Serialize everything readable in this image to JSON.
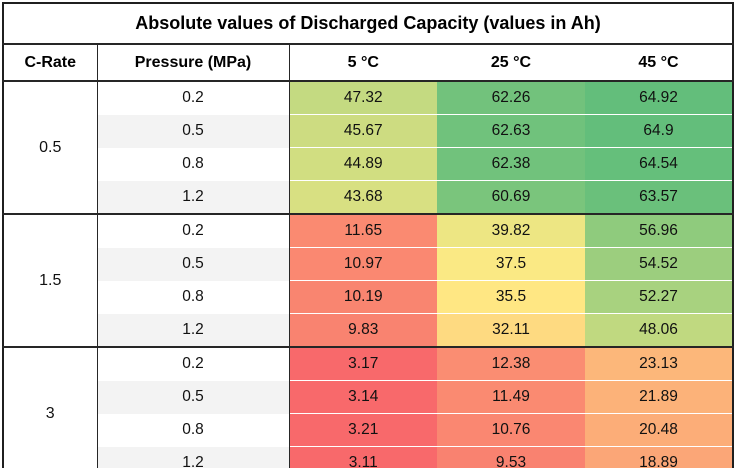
{
  "table": {
    "title": "Absolute values of Discharged Capacity (values in Ah)",
    "columns": [
      "C-Rate",
      "Pressure (MPa)",
      "5 °C",
      "25 °C",
      "45 °C"
    ],
    "groups": [
      {
        "c_rate": "0.5",
        "rows": [
          {
            "pressure": "0.2",
            "cells": [
              {
                "text": "47.32",
                "bg": "#C4DA81"
              },
              {
                "text": "62.26",
                "bg": "#72C27C"
              },
              {
                "text": "64.92",
                "bg": "#63BE7B"
              }
            ]
          },
          {
            "pressure": "0.5",
            "cells": [
              {
                "text": "45.67",
                "bg": "#CDDC81"
              },
              {
                "text": "62.63",
                "bg": "#70C27C"
              },
              {
                "text": "64.9",
                "bg": "#63BE7B"
              }
            ]
          },
          {
            "pressure": "0.8",
            "cells": [
              {
                "text": "44.89",
                "bg": "#D1DE81"
              },
              {
                "text": "62.38",
                "bg": "#71C27C"
              },
              {
                "text": "64.54",
                "bg": "#65BF7B"
              }
            ]
          },
          {
            "pressure": "1.2",
            "cells": [
              {
                "text": "43.68",
                "bg": "#D8E082"
              },
              {
                "text": "60.69",
                "bg": "#7AC57C"
              },
              {
                "text": "63.57",
                "bg": "#6AC07B"
              }
            ]
          }
        ]
      },
      {
        "c_rate": "1.5",
        "rows": [
          {
            "pressure": "0.2",
            "cells": [
              {
                "text": "11.65",
                "bg": "#FA8A71"
              },
              {
                "text": "39.82",
                "bg": "#EDE683"
              },
              {
                "text": "56.96",
                "bg": "#8FCB7D"
              }
            ]
          },
          {
            "pressure": "0.5",
            "cells": [
              {
                "text": "10.97",
                "bg": "#FA8871"
              },
              {
                "text": "37.5",
                "bg": "#FAE984"
              },
              {
                "text": "54.52",
                "bg": "#9CCE7E"
              }
            ]
          },
          {
            "pressure": "0.8",
            "cells": [
              {
                "text": "10.19",
                "bg": "#F98570"
              },
              {
                "text": "35.5",
                "bg": "#FFE783"
              },
              {
                "text": "52.27",
                "bg": "#A8D27F"
              }
            ]
          },
          {
            "pressure": "1.2",
            "cells": [
              {
                "text": "9.83",
                "bg": "#F98370"
              },
              {
                "text": "32.11",
                "bg": "#FEDA81"
              },
              {
                "text": "48.06",
                "bg": "#C0D980"
              }
            ]
          }
        ]
      },
      {
        "c_rate": "3",
        "rows": [
          {
            "pressure": "0.2",
            "cells": [
              {
                "text": "3.17",
                "bg": "#F8696B"
              },
              {
                "text": "12.38",
                "bg": "#FA8D72"
              },
              {
                "text": "23.13",
                "bg": "#FCB77A"
              }
            ]
          },
          {
            "pressure": "0.5",
            "cells": [
              {
                "text": "3.14",
                "bg": "#F8696B"
              },
              {
                "text": "11.49",
                "bg": "#FA8A71"
              },
              {
                "text": "21.89",
                "bg": "#FCB279"
              }
            ]
          },
          {
            "pressure": "0.8",
            "cells": [
              {
                "text": "3.21",
                "bg": "#F8696B"
              },
              {
                "text": "10.76",
                "bg": "#FA8771"
              },
              {
                "text": "20.48",
                "bg": "#FCAD78"
              }
            ]
          },
          {
            "pressure": "1.2",
            "cells": [
              {
                "text": "3.11",
                "bg": "#F8696B"
              },
              {
                "text": "9.53",
                "bg": "#F98270"
              },
              {
                "text": "18.89",
                "bg": "#FBA677"
              }
            ]
          }
        ]
      }
    ]
  },
  "colors": {
    "border": "#262626",
    "band_row": "#f3f3f3",
    "scale_min_color": "#F8696B",
    "scale_mid_color": "#FFEB84",
    "scale_max_color": "#63BE7B"
  },
  "chart_data": {
    "type": "heatmap",
    "title": "Absolute values of Discharged Capacity (values in Ah)",
    "unit": "Ah",
    "x_categories": [
      "5 °C",
      "25 °C",
      "45 °C"
    ],
    "row_dimensions": [
      "C-Rate",
      "Pressure (MPa)"
    ],
    "rows": [
      {
        "c_rate": 0.5,
        "pressure_mpa": 0.2,
        "values": [
          47.32,
          62.26,
          64.92
        ]
      },
      {
        "c_rate": 0.5,
        "pressure_mpa": 0.5,
        "values": [
          45.67,
          62.63,
          64.9
        ]
      },
      {
        "c_rate": 0.5,
        "pressure_mpa": 0.8,
        "values": [
          44.89,
          62.38,
          64.54
        ]
      },
      {
        "c_rate": 0.5,
        "pressure_mpa": 1.2,
        "values": [
          43.68,
          60.69,
          63.57
        ]
      },
      {
        "c_rate": 1.5,
        "pressure_mpa": 0.2,
        "values": [
          11.65,
          39.82,
          56.96
        ]
      },
      {
        "c_rate": 1.5,
        "pressure_mpa": 0.5,
        "values": [
          10.97,
          37.5,
          54.52
        ]
      },
      {
        "c_rate": 1.5,
        "pressure_mpa": 0.8,
        "values": [
          10.19,
          35.5,
          52.27
        ]
      },
      {
        "c_rate": 1.5,
        "pressure_mpa": 1.2,
        "values": [
          9.83,
          32.11,
          48.06
        ]
      },
      {
        "c_rate": 3,
        "pressure_mpa": 0.2,
        "values": [
          3.17,
          12.38,
          23.13
        ]
      },
      {
        "c_rate": 3,
        "pressure_mpa": 0.5,
        "values": [
          3.14,
          11.49,
          21.89
        ]
      },
      {
        "c_rate": 3,
        "pressure_mpa": 0.8,
        "values": [
          3.21,
          10.76,
          20.48
        ]
      },
      {
        "c_rate": 3,
        "pressure_mpa": 1.2,
        "values": [
          3.11,
          9.53,
          18.89
        ]
      }
    ],
    "color_scale": {
      "kind": "3-color",
      "min_value": 3.11,
      "mid_value": 36.5,
      "max_value": 64.92,
      "min_color": "#F8696B",
      "mid_color": "#FFEB84",
      "max_color": "#63BE7B"
    },
    "legend_position": "none",
    "grid": false
  }
}
